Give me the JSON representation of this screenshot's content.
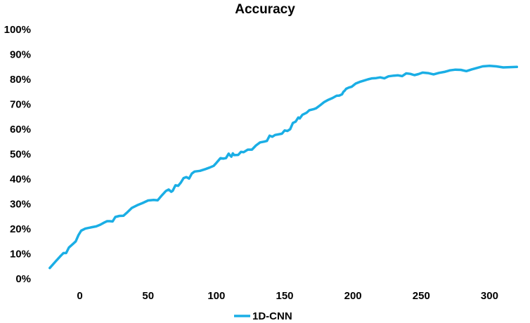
{
  "chart_data": {
    "type": "line",
    "title": "Accuracy",
    "xlabel": "",
    "ylabel": "",
    "xlim": [
      -25,
      325
    ],
    "ylim": [
      0,
      100
    ],
    "x_ticks": [
      0,
      50,
      100,
      150,
      200,
      250,
      300
    ],
    "x_tick_labels": [
      "0",
      "50",
      "100",
      "150",
      "200",
      "250",
      "300"
    ],
    "y_ticks": [
      0,
      10,
      20,
      30,
      40,
      50,
      60,
      70,
      80,
      90,
      100
    ],
    "y_tick_labels": [
      "0%",
      "10%",
      "20%",
      "30%",
      "40%",
      "50%",
      "60%",
      "70%",
      "80%",
      "90%",
      "100%"
    ],
    "grid": false,
    "legend_position": "bottom-center",
    "series": [
      {
        "name": "1D-CNN",
        "color": "#1aaee5",
        "points": [
          [
            -22,
            4.3
          ],
          [
            -18,
            6.8
          ],
          [
            -14,
            9.2
          ],
          [
            -12,
            10.3
          ],
          [
            -10,
            10.3
          ],
          [
            -8,
            12.5
          ],
          [
            -5,
            14.0
          ],
          [
            -3,
            15.0
          ],
          [
            -1,
            17.5
          ],
          [
            1,
            19.3
          ],
          [
            4,
            20.1
          ],
          [
            8,
            20.6
          ],
          [
            12,
            21.0
          ],
          [
            15,
            21.7
          ],
          [
            18,
            22.6
          ],
          [
            20,
            23.1
          ],
          [
            22,
            23.1
          ],
          [
            24,
            23.0
          ],
          [
            26,
            24.8
          ],
          [
            29,
            25.2
          ],
          [
            32,
            25.3
          ],
          [
            35,
            26.8
          ],
          [
            38,
            28.4
          ],
          [
            42,
            29.5
          ],
          [
            46,
            30.4
          ],
          [
            50,
            31.4
          ],
          [
            54,
            31.6
          ],
          [
            57,
            31.5
          ],
          [
            60,
            33.4
          ],
          [
            63,
            35.2
          ],
          [
            65,
            35.8
          ],
          [
            67,
            34.9
          ],
          [
            68,
            35.3
          ],
          [
            70,
            37.5
          ],
          [
            72,
            37.3
          ],
          [
            74,
            38.6
          ],
          [
            76,
            40.4
          ],
          [
            78,
            40.8
          ],
          [
            80,
            40.2
          ],
          [
            82,
            42.2
          ],
          [
            84,
            43.0
          ],
          [
            88,
            43.3
          ],
          [
            92,
            44.0
          ],
          [
            95,
            44.6
          ],
          [
            98,
            45.3
          ],
          [
            100,
            46.5
          ],
          [
            103,
            48.4
          ],
          [
            105,
            48.2
          ],
          [
            107,
            48.4
          ],
          [
            109,
            50.2
          ],
          [
            110,
            49.5
          ],
          [
            111,
            49.0
          ],
          [
            112,
            50.3
          ],
          [
            113,
            49.6
          ],
          [
            116,
            49.7
          ],
          [
            118,
            50.9
          ],
          [
            120,
            50.8
          ],
          [
            123,
            51.8
          ],
          [
            126,
            51.8
          ],
          [
            129,
            53.5
          ],
          [
            132,
            54.7
          ],
          [
            135,
            55.0
          ],
          [
            137,
            55.3
          ],
          [
            139,
            57.4
          ],
          [
            141,
            57.0
          ],
          [
            143,
            57.7
          ],
          [
            145,
            57.9
          ],
          [
            148,
            58.2
          ],
          [
            150,
            59.5
          ],
          [
            152,
            59.3
          ],
          [
            154,
            60.0
          ],
          [
            156,
            62.5
          ],
          [
            158,
            63.0
          ],
          [
            160,
            64.7
          ],
          [
            161,
            64.3
          ],
          [
            163,
            65.8
          ],
          [
            166,
            66.6
          ],
          [
            168,
            67.6
          ],
          [
            171,
            68.0
          ],
          [
            173,
            68.4
          ],
          [
            176,
            69.6
          ],
          [
            179,
            70.9
          ],
          [
            182,
            71.8
          ],
          [
            185,
            72.5
          ],
          [
            188,
            73.4
          ],
          [
            190,
            73.5
          ],
          [
            192,
            74.0
          ],
          [
            193,
            75.0
          ],
          [
            194,
            75.5
          ],
          [
            195,
            76.2
          ],
          [
            197,
            76.7
          ],
          [
            199,
            77.0
          ],
          [
            202,
            78.3
          ],
          [
            205,
            79.0
          ],
          [
            208,
            79.5
          ],
          [
            211,
            80.0
          ],
          [
            214,
            80.4
          ],
          [
            217,
            80.5
          ],
          [
            220,
            80.8
          ],
          [
            223,
            80.4
          ],
          [
            226,
            81.2
          ],
          [
            230,
            81.5
          ],
          [
            233,
            81.6
          ],
          [
            236,
            81.3
          ],
          [
            239,
            82.4
          ],
          [
            242,
            82.2
          ],
          [
            245,
            81.7
          ],
          [
            248,
            82.1
          ],
          [
            251,
            82.7
          ],
          [
            255,
            82.5
          ],
          [
            259,
            82.0
          ],
          [
            263,
            82.6
          ],
          [
            267,
            83.0
          ],
          [
            271,
            83.6
          ],
          [
            275,
            83.9
          ],
          [
            279,
            83.8
          ],
          [
            283,
            83.3
          ],
          [
            287,
            84.0
          ],
          [
            291,
            84.6
          ],
          [
            295,
            85.2
          ],
          [
            300,
            85.4
          ],
          [
            305,
            85.2
          ],
          [
            310,
            84.8
          ],
          [
            315,
            84.9
          ],
          [
            320,
            85.0
          ]
        ]
      }
    ]
  }
}
